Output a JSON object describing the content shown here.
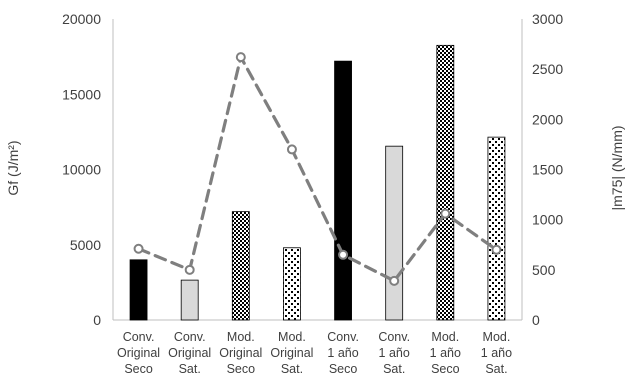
{
  "chart_data": {
    "type": "bar",
    "categories": [
      [
        "Conv.",
        "Original",
        "Seco"
      ],
      [
        "Conv.",
        "Original",
        "Sat."
      ],
      [
        "Mod.",
        "Original",
        "Seco"
      ],
      [
        "Mod.",
        "Original",
        "Sat."
      ],
      [
        "Conv.",
        "1 año",
        "Seco"
      ],
      [
        "Conv.",
        "1 año",
        "Sat."
      ],
      [
        "Mod.",
        "1 año",
        "Seco"
      ],
      [
        "Mod.",
        "1 año",
        "Sat."
      ]
    ],
    "series": [
      {
        "axis": "left",
        "type": "bar",
        "values": [
          4000,
          2650,
          7200,
          4800,
          17200,
          11550,
          18250,
          12150
        ],
        "fills": [
          "solid-black",
          "solid-lightgray",
          "dense-checker",
          "sparse-checker",
          "solid-black",
          "solid-lightgray",
          "dense-checker",
          "sparse-checker"
        ]
      },
      {
        "axis": "right",
        "type": "line",
        "style": "dashed-with-circle-markers",
        "values": [
          710,
          500,
          2620,
          1700,
          650,
          390,
          1060,
          700
        ]
      }
    ],
    "ylabel": "Gf (J/m²)",
    "y2label": "|m75| (N/mm)",
    "ylim": [
      0,
      20000
    ],
    "y2lim": [
      0,
      3000
    ],
    "yticks": [
      0,
      5000,
      10000,
      15000,
      20000
    ],
    "y2ticks": [
      0,
      500,
      1000,
      1500,
      2000,
      2500,
      3000
    ],
    "grid": false,
    "legend": "none"
  },
  "colors": {
    "axis": "#bfbfbf",
    "text": "#404040",
    "bar_black": "#000000",
    "bar_lightgray": "#d9d9d9",
    "bar_outline": "#000000",
    "line": "#7f7f7f",
    "marker_fill": "#ffffff"
  }
}
